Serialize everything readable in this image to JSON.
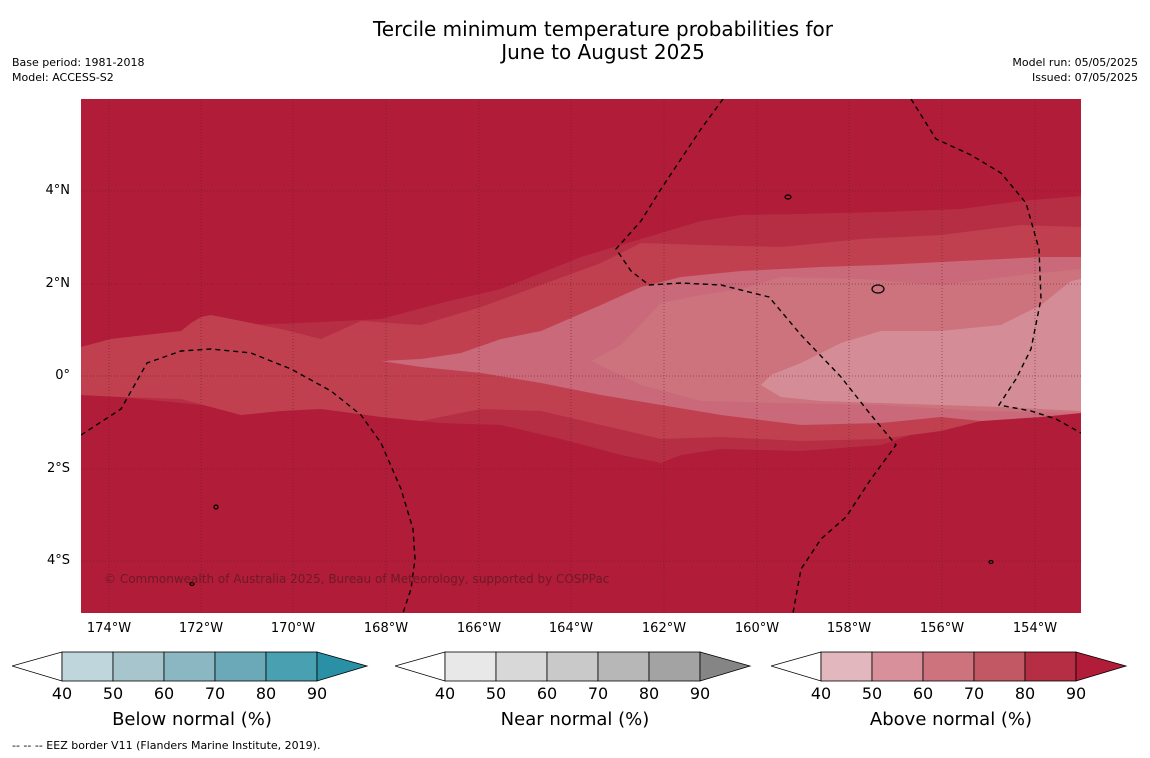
{
  "header": {
    "title_line1": "Tercile minimum temperature probabilities for",
    "title_line2": "June to August 2025",
    "base_period": "Base period: 1981-2018",
    "model": "Model: ACCESS-S2",
    "model_run": "Model run: 05/05/2025",
    "issued": "Issued: 07/05/2025"
  },
  "map": {
    "lat_labels": [
      "4°N",
      "2°N",
      "0°",
      "2°S",
      "4°S"
    ],
    "lon_labels": [
      "174°W",
      "172°W",
      "170°W",
      "168°W",
      "166°W",
      "164°W",
      "162°W",
      "160°W",
      "158°W",
      "156°W",
      "154°W"
    ],
    "copyright": "© Commonwealth of Australia 2025, Bureau of Meteorology, supported by COSPPac",
    "background_color": "#b11c38"
  },
  "legends": [
    {
      "title": "Below normal (%)",
      "ticks": [
        "40",
        "50",
        "60",
        "70",
        "80",
        "90"
      ],
      "colors": [
        "#ffffff",
        "#bfd6dd",
        "#a7c5cc",
        "#8bb7c3",
        "#6ca9b8",
        "#48a0b0",
        "#2990a6"
      ]
    },
    {
      "title": "Near normal (%)",
      "ticks": [
        "40",
        "50",
        "60",
        "70",
        "80",
        "90"
      ],
      "colors": [
        "#ffffff",
        "#e8e8e8",
        "#d8d8d8",
        "#c9c9c9",
        "#b7b7b7",
        "#a3a3a3",
        "#858585"
      ]
    },
    {
      "title": "Above normal (%)",
      "ticks": [
        "40",
        "50",
        "60",
        "70",
        "80",
        "90"
      ],
      "colors": [
        "#ffffff",
        "#e2b7be",
        "#d8919b",
        "#cc737e",
        "#c35865",
        "#b62e44",
        "#b11c38"
      ]
    }
  ],
  "footnote": "--  --  -- EEZ border V11 (Flanders Marine Institute, 2019)."
}
